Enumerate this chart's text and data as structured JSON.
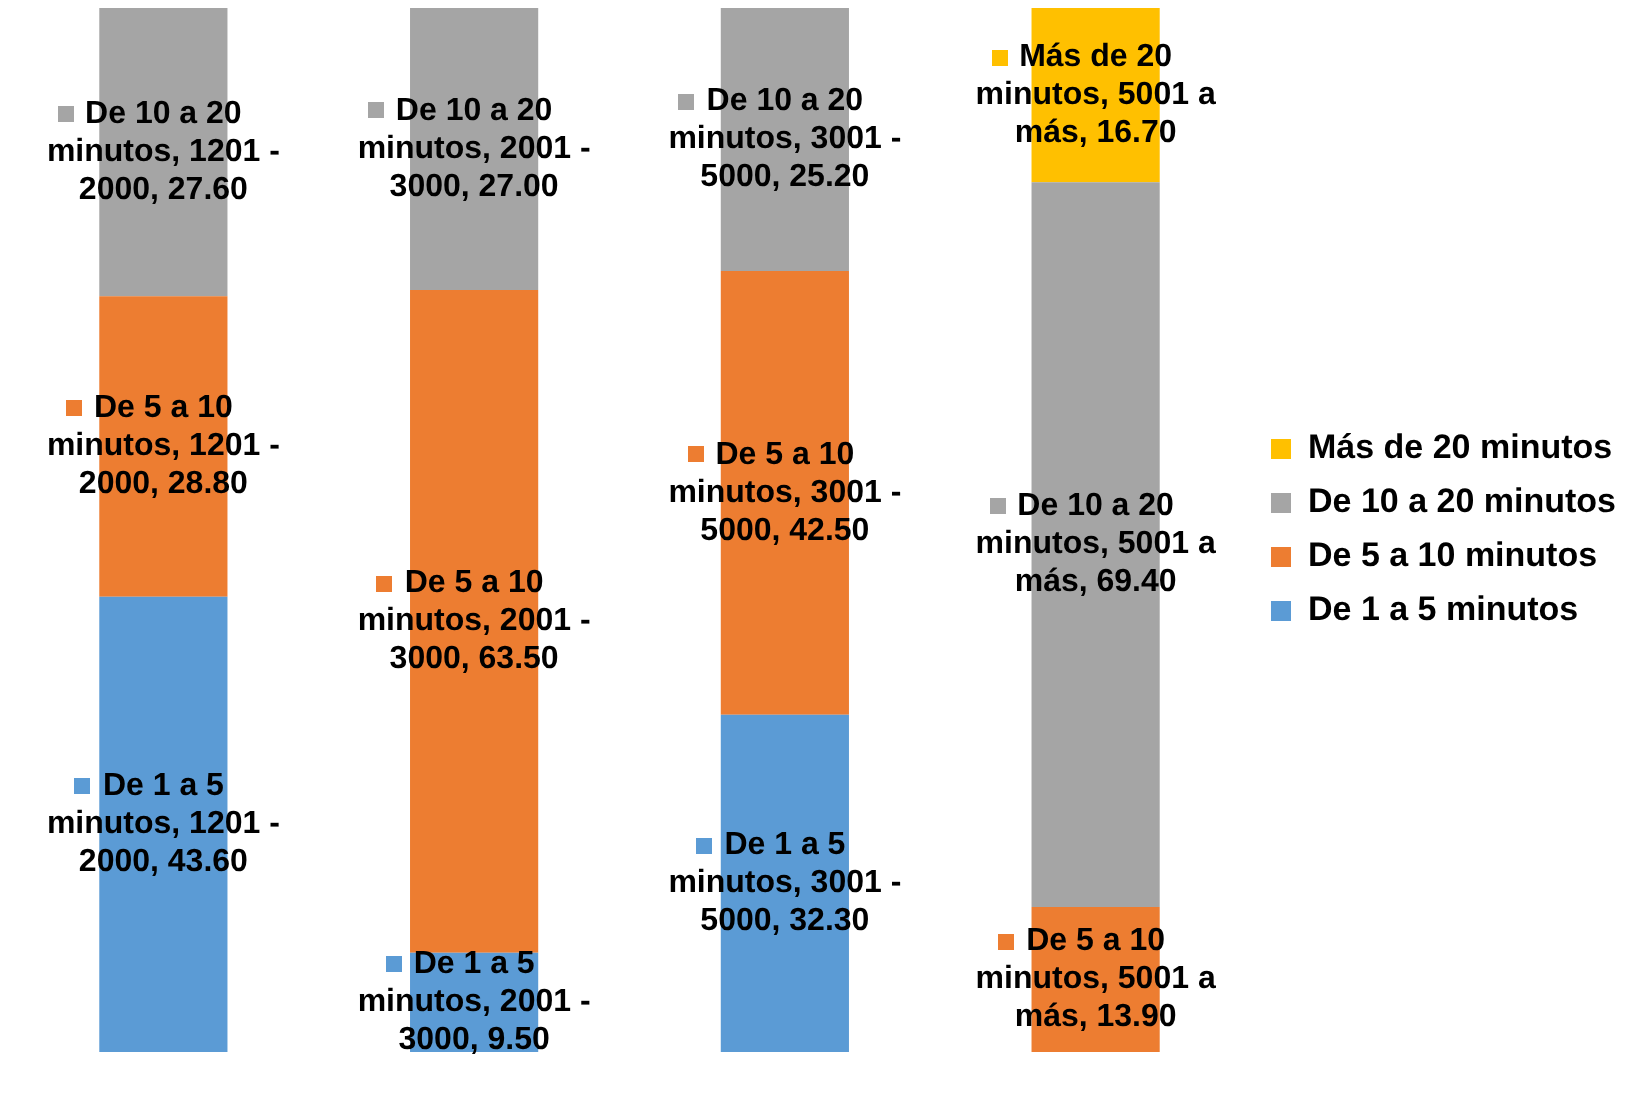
{
  "chart_data": {
    "type": "bar",
    "stacked": true,
    "categories": [
      null,
      null,
      null,
      null
    ],
    "tick_labels": false,
    "legend": "right",
    "ylim": [
      0,
      100
    ],
    "series": [
      {
        "name": "De 1 a 5 minutos",
        "color": "#5b9bd5",
        "values": [
          43.6,
          9.5,
          32.3,
          null
        ],
        "value_labels": [
          "De 1 a 5 minutos, 1201 - 2000, 43.60",
          "De 1 a 5 minutos, 2001 - 3000, 9.50",
          "De 1 a 5 minutos, 3001 - 5000, 32.30",
          null
        ]
      },
      {
        "name": "De 5 a 10 minutos",
        "color": "#ed7d31",
        "values": [
          28.8,
          63.5,
          42.5,
          13.9
        ],
        "value_labels": [
          "De 5 a 10 minutos, 1201 - 2000, 28.80",
          "De 5 a 10 minutos, 2001 - 3000, 63.50",
          "De 5 a 10 minutos, 3001 - 5000, 42.50",
          "De 5 a 10 minutos, 5001 a más, 13.90"
        ]
      },
      {
        "name": "De 10 a 20 minutos",
        "color": "#a5a5a5",
        "values": [
          27.6,
          27.0,
          25.2,
          69.4
        ],
        "value_labels": [
          "De 10 a 20 minutos, 1201 - 2000, 27.60",
          "De 10 a 20 minutos, 2001 - 3000, 27.00",
          "De 10 a 20 minutos, 3001 - 5000, 25.20",
          "De 10 a 20 minutos, 5001 a más, 69.40"
        ]
      },
      {
        "name": "Más de 20 minutos",
        "color": "#ffc000",
        "values": [
          null,
          null,
          null,
          16.7
        ],
        "value_labels": [
          null,
          null,
          null,
          "Más de 20 minutos, 5001 a más, 16.70"
        ]
      }
    ]
  }
}
